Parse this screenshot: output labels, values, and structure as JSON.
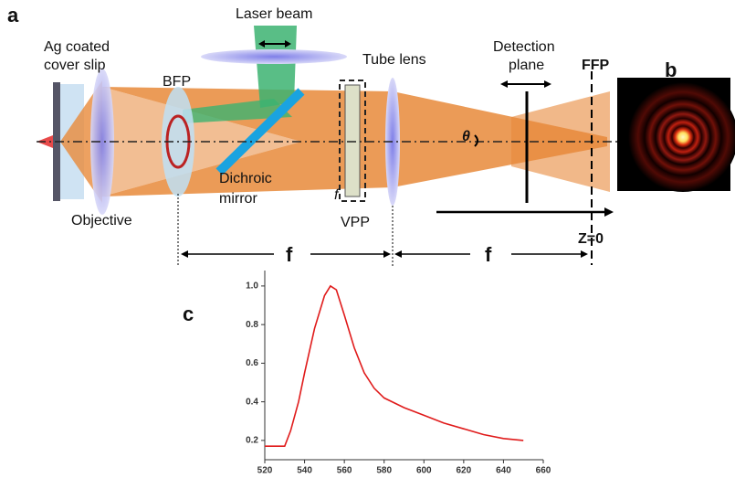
{
  "panel_labels": [
    "a",
    "b",
    "c"
  ],
  "diagram": {
    "ag_coated": [
      "Ag coated",
      "cover slip"
    ],
    "laser_beam": "Laser beam",
    "bfp": "BFP",
    "tube_lens": "Tube lens",
    "detection_plane": [
      "Detection",
      "plane"
    ],
    "ffp": "FFP",
    "dichroic_mirror": [
      "Dichroic",
      "mirror"
    ],
    "objective": "Objective",
    "vpp": "VPP",
    "vpp_f": "f",
    "theta": "θ",
    "focal_lengths": [
      "f",
      "f"
    ],
    "z0": "Z=0"
  },
  "chart_data": {
    "type": "line",
    "color": "#e01b1b",
    "x": [
      520,
      525,
      530,
      533,
      537,
      540,
      545,
      550,
      553,
      556,
      560,
      565,
      570,
      575,
      580,
      590,
      600,
      610,
      620,
      630,
      640,
      650
    ],
    "values": [
      0.17,
      0.17,
      0.17,
      0.25,
      0.4,
      0.55,
      0.78,
      0.95,
      1.0,
      0.98,
      0.85,
      0.68,
      0.55,
      0.47,
      0.42,
      0.37,
      0.33,
      0.29,
      0.26,
      0.23,
      0.21,
      0.2
    ],
    "xlim": [
      520,
      660
    ],
    "xticks": [
      520,
      540,
      560,
      580,
      600,
      620,
      640,
      660
    ],
    "ylim": [
      0.1,
      1.08
    ],
    "yticks": [
      0.2,
      0.4,
      0.6,
      0.8,
      {
        "value": 1,
        "label": "1.0"
      }
    ]
  }
}
